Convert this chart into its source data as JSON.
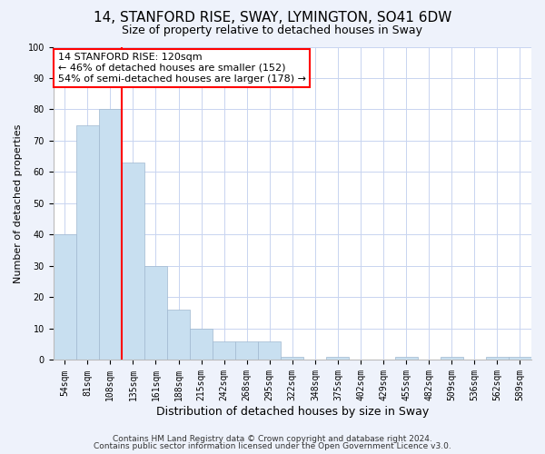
{
  "title": "14, STANFORD RISE, SWAY, LYMINGTON, SO41 6DW",
  "subtitle": "Size of property relative to detached houses in Sway",
  "xlabel": "Distribution of detached houses by size in Sway",
  "ylabel": "Number of detached properties",
  "bar_labels": [
    "54sqm",
    "81sqm",
    "108sqm",
    "135sqm",
    "161sqm",
    "188sqm",
    "215sqm",
    "242sqm",
    "268sqm",
    "295sqm",
    "322sqm",
    "348sqm",
    "375sqm",
    "402sqm",
    "429sqm",
    "455sqm",
    "482sqm",
    "509sqm",
    "536sqm",
    "562sqm",
    "589sqm"
  ],
  "bar_values": [
    40,
    75,
    80,
    63,
    30,
    16,
    10,
    6,
    6,
    6,
    1,
    0,
    1,
    0,
    0,
    1,
    0,
    1,
    0,
    1,
    1
  ],
  "bar_color": "#c8dff0",
  "vline_bar_index": 2,
  "vline_color": "red",
  "ylim": [
    0,
    100
  ],
  "annotation_lines": [
    "14 STANFORD RISE: 120sqm",
    "← 46% of detached houses are smaller (152)",
    "54% of semi-detached houses are larger (178) →"
  ],
  "footer_lines": [
    "Contains HM Land Registry data © Crown copyright and database right 2024.",
    "Contains public sector information licensed under the Open Government Licence v3.0."
  ],
  "background_color": "#eef2fb",
  "plot_background_color": "#ffffff",
  "grid_color": "#c8d4f0",
  "title_fontsize": 11,
  "subtitle_fontsize": 9,
  "xlabel_fontsize": 9,
  "ylabel_fontsize": 8,
  "tick_fontsize": 7,
  "annotation_fontsize": 8,
  "footer_fontsize": 6.5
}
